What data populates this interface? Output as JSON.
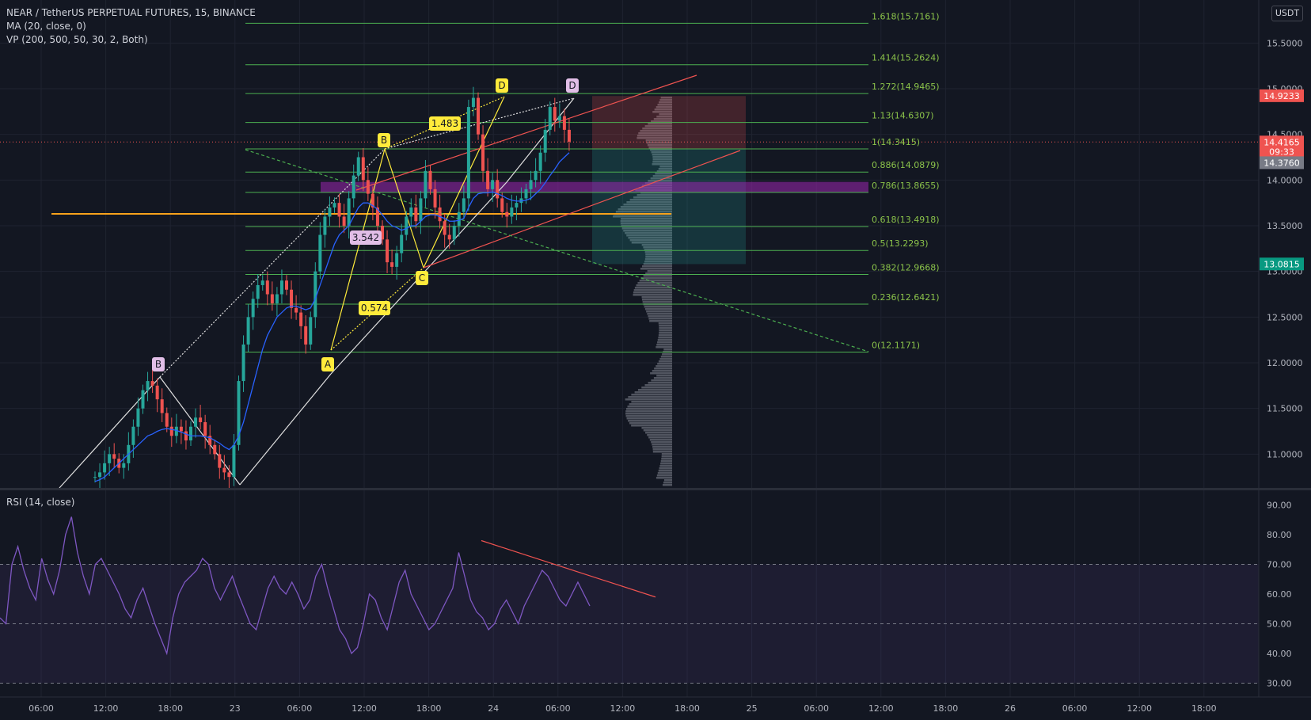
{
  "header": {
    "symbol_line": "NEAR / TetherUS PERPETUAL FUTURES, 15, BINANCE",
    "ma_line": "MA (20, close, 0)",
    "vp_line": "VP (200, 500, 50, 30, 2, Both)",
    "currency": "USDT"
  },
  "rsi_legend": "RSI (14, close)",
  "colors": {
    "background": "#131722",
    "grid": "#1f2330",
    "up": "#26a69a",
    "down": "#ef5350",
    "fib": "#4caf50",
    "fib_text": "#8bc34a",
    "ma": "#2962ff",
    "rsi": "#7e57c2",
    "orange": "#f7a21b",
    "purple_zone": "#9c27b0",
    "volume_profile": "#5d606b"
  },
  "chart_data": {
    "type": "candlestick",
    "price_axis": {
      "ticks": [
        "15.5000",
        "15.0000",
        "14.5000",
        "14.0000",
        "13.5000",
        "13.0000",
        "12.5000",
        "12.0000",
        "11.5000",
        "11.0000"
      ],
      "range": [
        10.6,
        16.0
      ]
    },
    "time_axis": {
      "labels": [
        "06:00",
        "12:00",
        "18:00",
        "23",
        "06:00",
        "12:00",
        "18:00",
        "24",
        "06:00",
        "12:00",
        "18:00",
        "25",
        "06:00",
        "12:00",
        "18:00",
        "26",
        "06:00",
        "12:00",
        "18:00"
      ]
    },
    "price_labels": [
      {
        "text": "14.9233",
        "price": 14.9233,
        "color": "#ef5350"
      },
      {
        "text": "14.4165",
        "price": 14.4165,
        "color": "#ef5350"
      },
      {
        "text": "09:33",
        "price": 14.31,
        "color": "#ef5350"
      },
      {
        "text": "14.3760",
        "price": 14.19,
        "color": "#787b86"
      },
      {
        "text": "13.0815",
        "price": 13.0815,
        "color": "#089981"
      }
    ],
    "fib_levels": [
      {
        "label": "1.618(15.7161)",
        "price": 15.7161
      },
      {
        "label": "1.414(15.2624)",
        "price": 15.2624
      },
      {
        "label": "1.272(14.9465)",
        "price": 14.9465
      },
      {
        "label": "1.13(14.6307)",
        "price": 14.6307
      },
      {
        "label": "1(14.3415)",
        "price": 14.3415
      },
      {
        "label": "0.886(14.0879)",
        "price": 14.0879
      },
      {
        "label": "0.786(13.8655)",
        "price": 13.8655
      },
      {
        "label": "0.618(13.4918)",
        "price": 13.4918
      },
      {
        "label": "0.5(13.2293)",
        "price": 13.2293
      },
      {
        "label": "0.382(12.9668)",
        "price": 12.9668
      },
      {
        "label": "0.236(12.6421)",
        "price": 12.6421
      },
      {
        "label": "0(12.1171)",
        "price": 12.1171
      }
    ],
    "pattern_labels": [
      {
        "text": "B",
        "color": "#e1bee7",
        "price": 11.95
      },
      {
        "text": "A",
        "color": "#ffeb3b",
        "price": 12.05
      },
      {
        "text": "B",
        "color": "#ffeb3b",
        "price": 14.45
      },
      {
        "text": "C",
        "color": "#ffeb3b",
        "price": 12.95
      },
      {
        "text": "D",
        "color": "#ffeb3b",
        "price": 15.02
      },
      {
        "text": "D",
        "color": "#e1bee7",
        "price": 15.02
      }
    ],
    "ratio_labels": [
      {
        "text": "1.483",
        "color": "#ffeb3b"
      },
      {
        "text": "3.542",
        "color": "#e1bee7"
      },
      {
        "text": "0.574",
        "color": "#ffeb3b"
      }
    ],
    "orange_level": 13.63,
    "purple_zone": [
      13.86,
      13.98
    ],
    "position": {
      "entry": 14.34,
      "target": 13.08,
      "stop": 14.92
    },
    "close_series": [
      10.75,
      10.8,
      10.9,
      11.0,
      10.95,
      10.85,
      10.9,
      11.1,
      11.3,
      11.5,
      11.7,
      11.8,
      11.75,
      11.6,
      11.45,
      11.3,
      11.2,
      11.3,
      11.25,
      11.15,
      11.3,
      11.4,
      11.35,
      11.2,
      11.1,
      11.0,
      10.85,
      10.8,
      10.75,
      11.1,
      11.8,
      12.2,
      12.5,
      12.7,
      12.85,
      12.9,
      12.75,
      12.65,
      12.75,
      12.9,
      12.8,
      12.6,
      12.55,
      12.4,
      12.2,
      12.5,
      13.0,
      13.4,
      13.6,
      13.7,
      13.75,
      13.6,
      13.5,
      13.8,
      14.05,
      14.25,
      14.0,
      13.85,
      13.7,
      13.5,
      13.35,
      13.1,
      13.05,
      13.2,
      13.4,
      13.6,
      13.7,
      13.55,
      13.8,
      14.1,
      13.9,
      13.7,
      13.55,
      13.4,
      13.35,
      13.5,
      13.65,
      13.8,
      14.8,
      14.9,
      14.5,
      14.1,
      13.9,
      14.0,
      13.8,
      13.65,
      13.6,
      13.7,
      13.75,
      13.8,
      13.9,
      14.0,
      14.1,
      14.3,
      14.55,
      14.8,
      14.65,
      14.7,
      14.55,
      14.42
    ],
    "ma_series": [
      10.7,
      10.72,
      10.75,
      10.8,
      10.85,
      10.9,
      10.95,
      11.0,
      11.05,
      11.1,
      11.15,
      11.2,
      11.22,
      11.25,
      11.27,
      11.28,
      11.27,
      11.26,
      11.24,
      11.22,
      11.2,
      11.2,
      11.2,
      11.19,
      11.18,
      11.15,
      11.12,
      11.08,
      11.05,
      11.1,
      11.2,
      11.35,
      11.55,
      11.75,
      11.95,
      12.15,
      12.3,
      12.4,
      12.5,
      12.55,
      12.6,
      12.62,
      12.62,
      12.6,
      12.58,
      12.6,
      12.7,
      12.85,
      13.0,
      13.15,
      13.3,
      13.4,
      13.45,
      13.5,
      13.6,
      13.7,
      13.75,
      13.75,
      13.72,
      13.68,
      13.62,
      13.55,
      13.5,
      13.48,
      13.45,
      13.47,
      13.5,
      13.5,
      13.55,
      13.6,
      13.62,
      13.62,
      13.6,
      13.58,
      13.55,
      13.55,
      13.56,
      13.58,
      13.7,
      13.8,
      13.85,
      13.86,
      13.86,
      13.87,
      13.85,
      13.83,
      13.8,
      13.78,
      13.77,
      13.77,
      13.78,
      13.8,
      13.85,
      13.9,
      13.97,
      14.05,
      14.12,
      14.2,
      14.25,
      14.3
    ],
    "rsi": {
      "ticks": [
        "90.00",
        "80.00",
        "70.00",
        "60.00",
        "50.00",
        "40.00",
        "30.00"
      ],
      "range": [
        25,
        94
      ],
      "levels": [
        70,
        50,
        30
      ],
      "values": [
        52,
        50,
        70,
        76,
        68,
        62,
        58,
        72,
        65,
        60,
        68,
        80,
        86,
        74,
        66,
        60,
        70,
        72,
        68,
        64,
        60,
        55,
        52,
        58,
        62,
        56,
        50,
        45,
        40,
        52,
        60,
        64,
        66,
        68,
        72,
        70,
        62,
        58,
        62,
        66,
        60,
        55,
        50,
        48,
        55,
        62,
        66,
        62,
        60,
        64,
        60,
        55,
        58,
        66,
        70,
        62,
        55,
        48,
        45,
        40,
        42,
        50,
        60,
        58,
        52,
        48,
        56,
        64,
        68,
        60,
        56,
        52,
        48,
        50,
        54,
        58,
        62,
        74,
        66,
        58,
        54,
        52,
        48,
        50,
        55,
        58,
        54,
        50,
        56,
        60,
        64,
        68,
        66,
        62,
        58,
        56,
        60,
        64,
        60,
        56
      ]
    }
  }
}
